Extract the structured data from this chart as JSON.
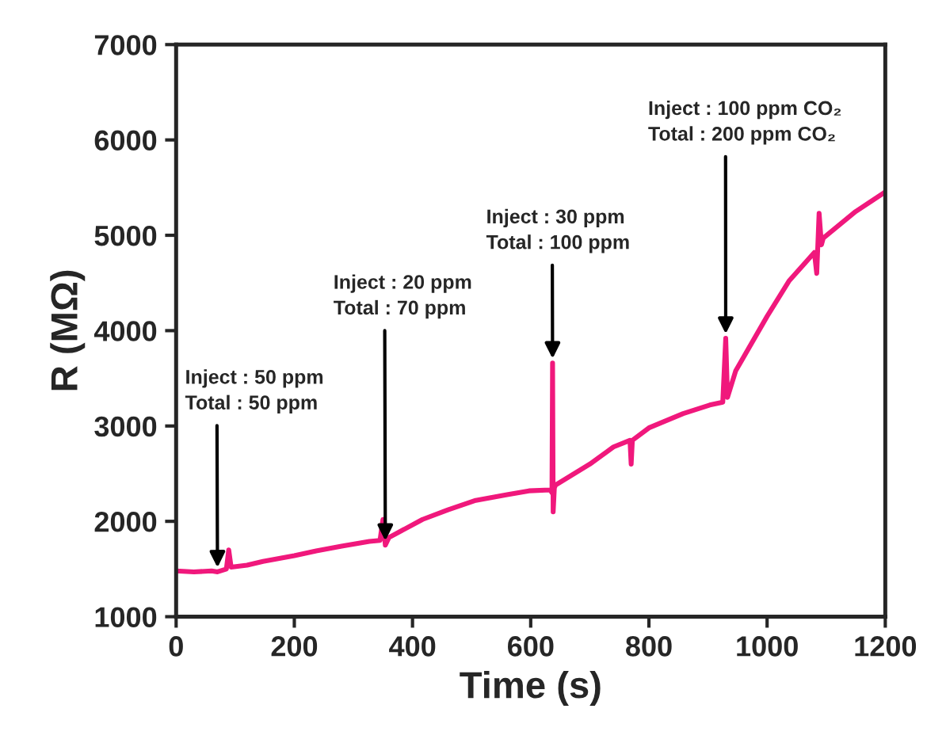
{
  "chart_data": {
    "type": "line",
    "xlabel": "Time (s)",
    "ylabel": "R (MΩ)",
    "x": [
      0,
      30,
      60,
      70,
      85,
      89,
      93,
      120,
      147,
      200,
      237,
      280,
      327,
      345,
      350,
      354,
      360,
      417,
      460,
      507,
      560,
      597,
      633,
      636,
      637,
      638,
      640,
      642,
      700,
      740,
      768,
      770,
      772,
      800,
      858,
      903,
      925,
      930,
      933,
      947,
      1000,
      1037,
      1080,
      1084,
      1088,
      1092,
      1095,
      1150,
      1199
    ],
    "series": [
      {
        "color": "#f0187c",
        "values": [
          1480,
          1470,
          1480,
          1470,
          1500,
          1700,
          1520,
          1540,
          1580,
          1640,
          1690,
          1740,
          1790,
          1800,
          2020,
          1750,
          1830,
          2020,
          2120,
          2220,
          2280,
          2320,
          2330,
          2300,
          3660,
          2100,
          2350,
          2380,
          2600,
          2780,
          2850,
          2600,
          2850,
          2980,
          3130,
          3220,
          3250,
          3920,
          3300,
          3580,
          4150,
          4520,
          4820,
          4600,
          5230,
          4900,
          4970,
          5250,
          5450
        ]
      }
    ],
    "xlim": [
      0,
      1200
    ],
    "ylim": [
      1000,
      7000
    ],
    "xticks": [
      0,
      200,
      400,
      600,
      800,
      1000,
      1200
    ],
    "yticks": [
      1000,
      2000,
      3000,
      4000,
      5000,
      6000,
      7000
    ],
    "grid": false,
    "legend": false,
    "marker": "none",
    "line_style": "solid",
    "annotations": [
      {
        "text": "Inject : 50 ppm\nTotal : 50 ppm",
        "x": 70,
        "y": 1470
      },
      {
        "text": "Inject : 20 ppm\nTotal : 70 ppm",
        "x": 354,
        "y": 1750
      },
      {
        "text": "Inject : 30 ppm\nTotal : 100 ppm",
        "x": 637,
        "y": 3660
      },
      {
        "text": "Inject : 100 ppm CO₂\nTotal : 200 ppm CO₂",
        "x": 930,
        "y": 3920
      }
    ]
  }
}
